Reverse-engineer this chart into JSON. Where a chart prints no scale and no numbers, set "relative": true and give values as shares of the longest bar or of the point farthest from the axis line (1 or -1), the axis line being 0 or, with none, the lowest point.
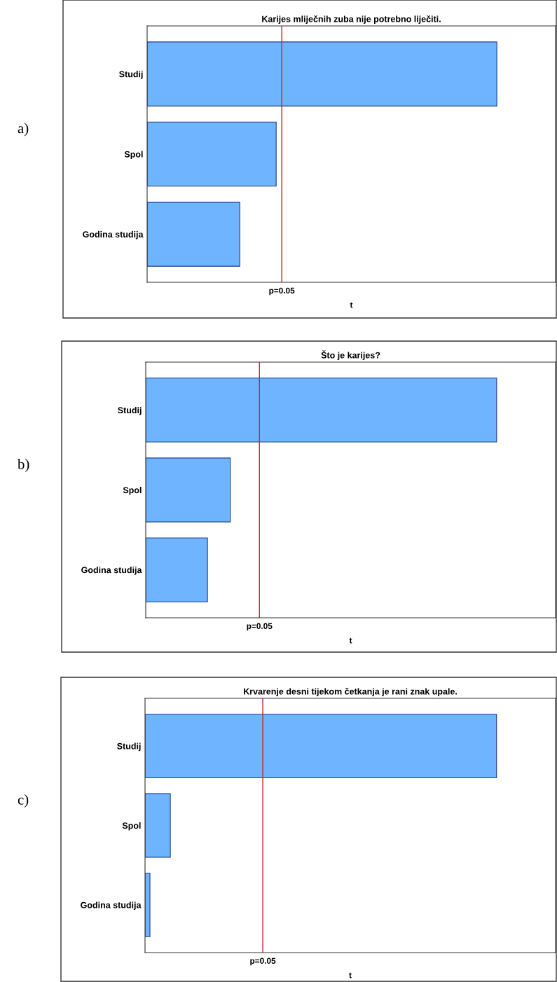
{
  "chart_data": [
    {
      "type": "bar",
      "orientation": "horizontal",
      "relative": true,
      "title": "Karijes mliječnih zuba nije potrebno liječiti.",
      "xlabel": "t",
      "categories": [
        "Studij",
        "Spol",
        "Godina studija"
      ],
      "values": [
        1,
        0.369,
        0.265
      ],
      "color": "#6fb4ff",
      "ref_lines": [
        {
          "axis": "x",
          "value": 0.385,
          "color": "#c0282d"
        }
      ],
      "annotations": [
        "a)",
        "p=0.05"
      ],
      "grid": false,
      "legend": false
    },
    {
      "type": "bar",
      "orientation": "horizontal",
      "relative": true,
      "title": "Što je karijes?",
      "xlabel": "t",
      "categories": [
        "Studij",
        "Spol",
        "Godina studija"
      ],
      "values": [
        1,
        0.241,
        0.176
      ],
      "color": "#6fb4ff",
      "ref_lines": [
        {
          "axis": "x",
          "value": 0.324,
          "color": "#c0282d"
        }
      ],
      "annotations": [
        "b)",
        "p=0.05"
      ],
      "grid": false,
      "legend": false
    },
    {
      "type": "bar",
      "orientation": "horizontal",
      "relative": true,
      "title": "Krvarenje desni tijekom četkanja je rani znak upale.",
      "xlabel": "t",
      "categories": [
        "Studij",
        "Spol",
        "Godina studija"
      ],
      "values": [
        1,
        0.072,
        0.014
      ],
      "color": "#6fb4ff",
      "ref_lines": [
        {
          "axis": "x",
          "value": 0.335,
          "color": "#c0282d"
        }
      ],
      "annotations": [
        "c)",
        "p=0.05"
      ],
      "grid": false,
      "legend": false
    }
  ]
}
